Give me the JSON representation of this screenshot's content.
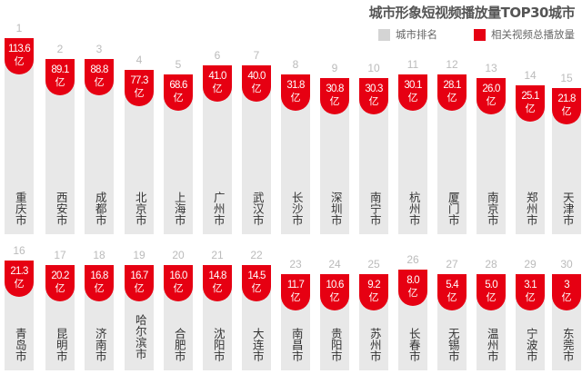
{
  "title": "城市形象短视频播放量TOP30城市",
  "legend": [
    {
      "label": "城市排名",
      "color": "#d4d4d4"
    },
    {
      "label": "相关视频总播放量",
      "color": "#e60012"
    }
  ],
  "unit": "亿",
  "chart_data": {
    "type": "bar",
    "title": "城市形象短视频播放量TOP30城市",
    "xlabel": "",
    "ylabel": "相关视频总播放量（亿）",
    "legend": [
      "城市排名",
      "相关视频总播放量"
    ],
    "legend_position": "top-right",
    "grid": false,
    "categories": [
      "重庆市",
      "西安市",
      "成都市",
      "北京市",
      "上海市",
      "广州市",
      "武汉市",
      "长沙市",
      "深圳市",
      "南宁市",
      "杭州市",
      "厦门市",
      "南京市",
      "郑州市",
      "天津市",
      "青岛市",
      "昆明市",
      "济南市",
      "哈尔滨市",
      "合肥市",
      "沈阳市",
      "大连市",
      "南昌市",
      "贵阳市",
      "苏州市",
      "长春市",
      "无锡市",
      "温州市",
      "宁波市",
      "东莞市"
    ],
    "ranks": [
      1,
      2,
      3,
      4,
      5,
      6,
      7,
      8,
      9,
      10,
      11,
      12,
      13,
      14,
      15,
      16,
      17,
      18,
      19,
      20,
      21,
      22,
      23,
      24,
      25,
      26,
      27,
      28,
      29,
      30
    ],
    "series": [
      {
        "name": "相关视频总播放量",
        "unit": "亿",
        "values": [
          113.6,
          89.1,
          88.8,
          77.3,
          68.6,
          41.0,
          40.0,
          31.8,
          30.8,
          30.3,
          30.1,
          28.1,
          26.0,
          25.1,
          21.8,
          21.3,
          20.2,
          16.8,
          16.7,
          16.0,
          14.8,
          14.5,
          11.7,
          10.6,
          9.2,
          8.0,
          5.4,
          5.0,
          3.1,
          3
        ]
      }
    ]
  },
  "rows": [
    {
      "items": [
        {
          "rank": "1",
          "value": "113.6",
          "city": "重庆市"
        },
        {
          "rank": "2",
          "value": "89.1",
          "city": "西安市"
        },
        {
          "rank": "3",
          "value": "88.8",
          "city": "成都市"
        },
        {
          "rank": "4",
          "value": "77.3",
          "city": "北京市"
        },
        {
          "rank": "5",
          "value": "68.6",
          "city": "上海市"
        },
        {
          "rank": "6",
          "value": "41.0",
          "city": "广州市"
        },
        {
          "rank": "7",
          "value": "40.0",
          "city": "武汉市"
        },
        {
          "rank": "8",
          "value": "31.8",
          "city": "长沙市"
        },
        {
          "rank": "9",
          "value": "30.8",
          "city": "深圳市"
        },
        {
          "rank": "10",
          "value": "30.3",
          "city": "南宁市"
        },
        {
          "rank": "11",
          "value": "30.1",
          "city": "杭州市"
        },
        {
          "rank": "12",
          "value": "28.1",
          "city": "厦门市"
        },
        {
          "rank": "13",
          "value": "26.0",
          "city": "南京市"
        },
        {
          "rank": "14",
          "value": "25.1",
          "city": "郑州市"
        },
        {
          "rank": "15",
          "value": "21.8",
          "city": "天津市"
        }
      ]
    },
    {
      "items": [
        {
          "rank": "16",
          "value": "21.3",
          "city": "青岛市"
        },
        {
          "rank": "17",
          "value": "20.2",
          "city": "昆明市"
        },
        {
          "rank": "18",
          "value": "16.8",
          "city": "济南市"
        },
        {
          "rank": "19",
          "value": "16.7",
          "city": "哈尔滨市"
        },
        {
          "rank": "20",
          "value": "16.0",
          "city": "合肥市"
        },
        {
          "rank": "21",
          "value": "14.8",
          "city": "沈阳市"
        },
        {
          "rank": "22",
          "value": "14.5",
          "city": "大连市"
        },
        {
          "rank": "23",
          "value": "11.7",
          "city": "南昌市"
        },
        {
          "rank": "24",
          "value": "10.6",
          "city": "贵阳市"
        },
        {
          "rank": "25",
          "value": "9.2",
          "city": "苏州市"
        },
        {
          "rank": "26",
          "value": "8.0",
          "city": "长春市"
        },
        {
          "rank": "27",
          "value": "5.4",
          "city": "无锡市"
        },
        {
          "rank": "28",
          "value": "5.0",
          "city": "温州市"
        },
        {
          "rank": "29",
          "value": "3.1",
          "city": "宁波市"
        },
        {
          "rank": "30",
          "value": "3",
          "city": "东莞市"
        }
      ]
    }
  ]
}
